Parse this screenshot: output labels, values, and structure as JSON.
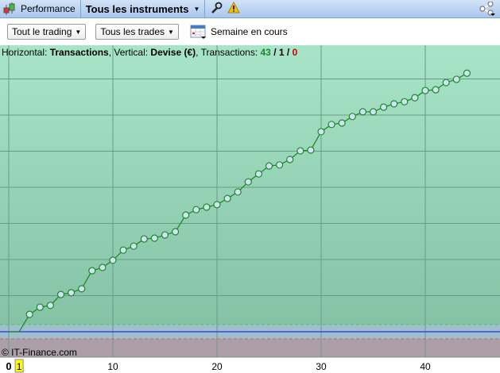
{
  "header": {
    "tab_performance": "Performance",
    "tab_instruments": "Tous les instruments",
    "icons": [
      "candlestick-icon",
      "wrench-icon",
      "warning-icon",
      "share-icon"
    ]
  },
  "toolbar": {
    "trading_select": "Tout le trading",
    "trades_select": "Tous les trades",
    "period_label": "Semaine en cours"
  },
  "info": {
    "h_label": "Horizontal: ",
    "h_value": "Transactions",
    "v_label": ", Vertical: ",
    "v_value": "Devise (€)",
    "t_label": ", Transactions: ",
    "t_win": "43",
    "sep1": " / ",
    "t_even": "1",
    "sep2": " / ",
    "t_loss": "0"
  },
  "copyright": "© IT-Finance.com",
  "chart_data": {
    "type": "line",
    "xlabel": "Transactions",
    "ylabel": "Devise (€)",
    "x_ticks": [
      "0",
      "1",
      "10",
      "20",
      "30",
      "40"
    ],
    "highlighted_x_tick": "1",
    "xlim": [
      0,
      47
    ],
    "ylim": [
      -0.7,
      7.9
    ],
    "y_unit_note": "",
    "grid": true,
    "colors": {
      "line": "#1f8a2a",
      "marker_fill": "#cfe3f2",
      "profit_zone": "#9fdcc0",
      "zero_line": "#2233dd",
      "loss_zone": "#ad9fa8"
    },
    "series": [
      {
        "x": [
          0,
          1,
          2,
          3,
          4,
          5,
          6,
          7,
          8,
          9,
          10,
          11,
          12,
          13,
          14,
          15,
          16,
          17,
          18,
          19,
          20,
          21,
          22,
          23,
          24,
          25,
          26,
          27,
          28,
          29,
          30,
          31,
          32,
          33,
          34,
          35,
          36,
          37,
          38,
          39,
          40,
          41,
          42,
          43,
          44
        ],
        "y": [
          0,
          0,
          0.48,
          0.68,
          0.73,
          1.03,
          1.08,
          1.19,
          1.69,
          1.78,
          1.98,
          2.26,
          2.37,
          2.57,
          2.59,
          2.68,
          2.77,
          3.23,
          3.38,
          3.45,
          3.52,
          3.69,
          3.87,
          4.15,
          4.37,
          4.59,
          4.62,
          4.77,
          5.01,
          5.03,
          5.54,
          5.74,
          5.78,
          5.96,
          6.09,
          6.09,
          6.22,
          6.31,
          6.37,
          6.48,
          6.68,
          6.7,
          6.9,
          6.99,
          7.16
        ]
      }
    ]
  }
}
